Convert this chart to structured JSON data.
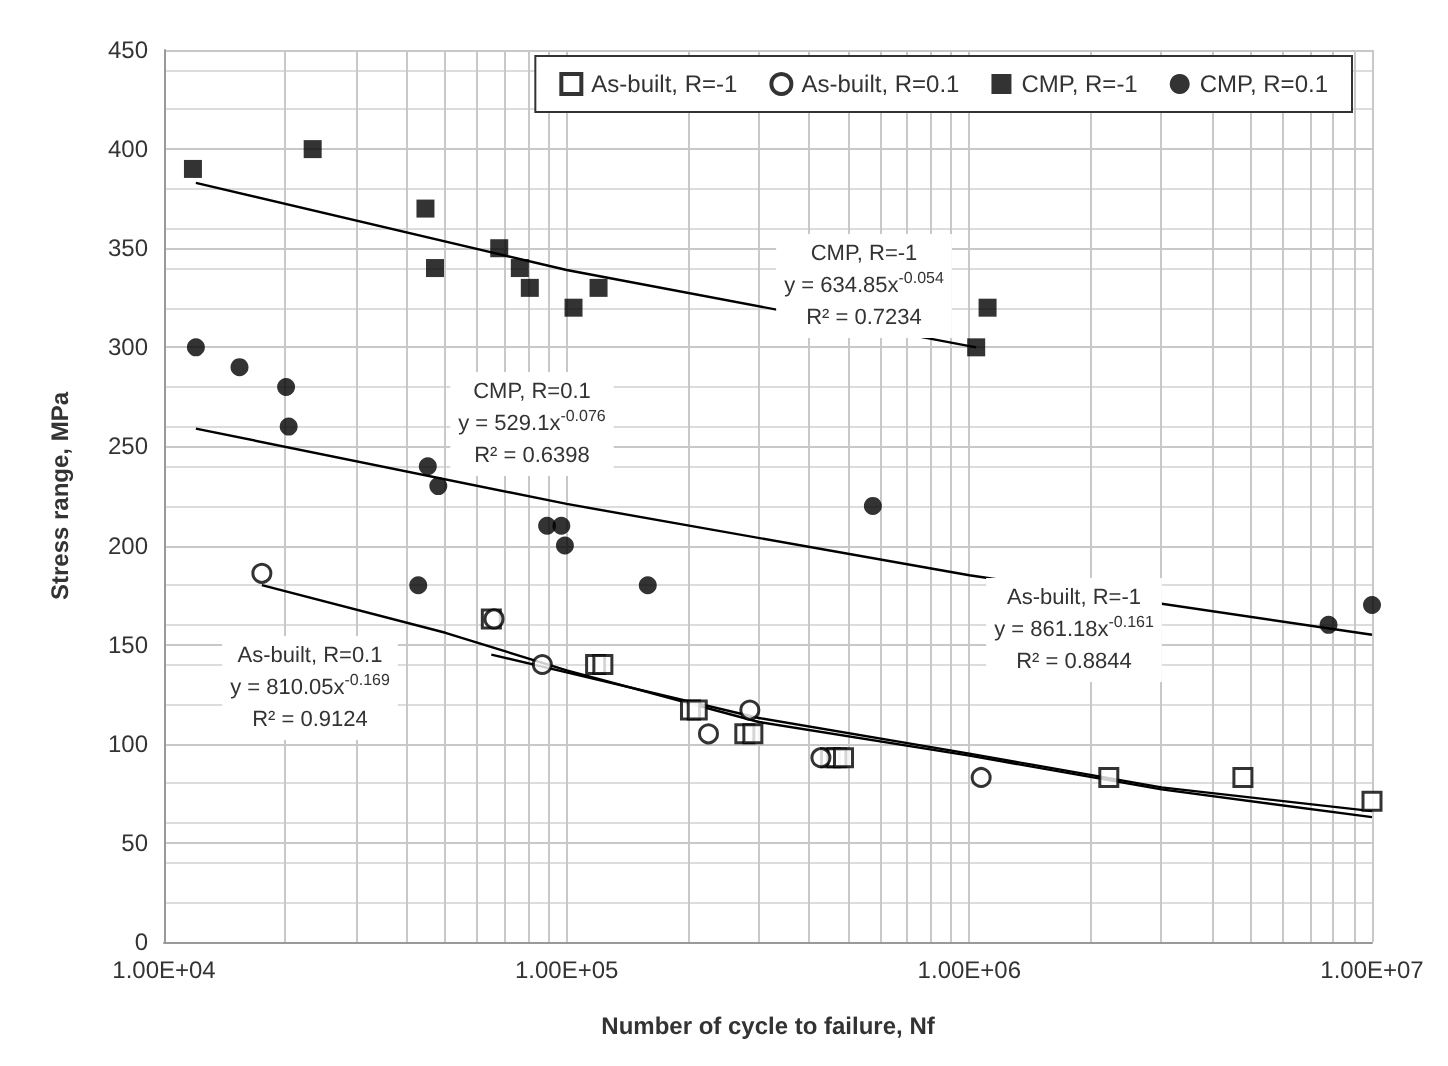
{
  "chart_data": {
    "type": "scatter",
    "xlabel": "Number of cycle to failure, Nf",
    "ylabel": "Stress range, MPa",
    "log": "x",
    "grid": true,
    "legend": "top right",
    "xlim": [
      10000,
      10000000
    ],
    "xticks": [
      {
        "value": 10000,
        "label": "1.00E+04"
      },
      {
        "value": 20000,
        "label": null
      },
      {
        "value": 30000,
        "label": null
      },
      {
        "value": 40000,
        "label": null
      },
      {
        "value": 50000,
        "label": null
      },
      {
        "value": 60000,
        "label": null
      },
      {
        "value": 70000,
        "label": null
      },
      {
        "value": 80000,
        "label": null
      },
      {
        "value": 90000,
        "label": null
      },
      {
        "value": 100000,
        "label": "1.00E+05"
      },
      {
        "value": 200000,
        "label": null
      },
      {
        "value": 300000,
        "label": null
      },
      {
        "value": 400000,
        "label": null
      },
      {
        "value": 500000,
        "label": null
      },
      {
        "value": 600000,
        "label": null
      },
      {
        "value": 700000,
        "label": null
      },
      {
        "value": 800000,
        "label": null
      },
      {
        "value": 900000,
        "label": null
      },
      {
        "value": 1000000,
        "label": "1.00E+06"
      },
      {
        "value": 2000000,
        "label": null
      },
      {
        "value": 3000000,
        "label": null
      },
      {
        "value": 4000000,
        "label": null
      },
      {
        "value": 5000000,
        "label": null
      },
      {
        "value": 6000000,
        "label": null
      },
      {
        "value": 7000000,
        "label": null
      },
      {
        "value": 8000000,
        "label": null
      },
      {
        "value": 9000000,
        "label": null
      },
      {
        "value": 10000000,
        "label": "1.00E+07"
      }
    ],
    "ylim": [
      0,
      450
    ],
    "yticks": [
      0,
      50,
      100,
      150,
      200,
      250,
      300,
      350,
      400,
      450
    ],
    "series": [
      {
        "name": "As-built, R=-1",
        "color": "#ffffff",
        "marker": "square",
        "x": [
          65000,
          118000,
          123000,
          203000,
          211000,
          277000,
          290000,
          452000,
          469000,
          487000,
          2220000,
          4780000,
          10000000
        ],
        "values": [
          163,
          140,
          140,
          117,
          117,
          105,
          105,
          93,
          93,
          93,
          83,
          83,
          71
        ]
      },
      {
        "name": "As-built, R=0.1",
        "color": "#ffffff",
        "marker": "circle",
        "x": [
          17500,
          66000,
          87000,
          225000,
          285000,
          428000,
          1070000
        ],
        "values": [
          186,
          163,
          140,
          105,
          117,
          93,
          83
        ]
      },
      {
        "name": "CMP, R=-1",
        "color": "#000000",
        "marker": "square",
        "x": [
          11800,
          23400,
          44600,
          47100,
          68000,
          76500,
          81000,
          104000,
          120000,
          1040000,
          1110000
        ],
        "values": [
          390,
          400,
          370,
          340,
          350,
          340,
          330,
          320,
          330,
          300,
          320
        ]
      },
      {
        "name": "CMP, R=0.1",
        "color": "#000000",
        "marker": "circle",
        "x": [
          12000,
          15400,
          20100,
          20400,
          42800,
          45200,
          48000,
          89400,
          97000,
          99000,
          159000,
          576000,
          7800000,
          10000000
        ],
        "values": [
          300,
          290,
          280,
          260,
          180,
          240,
          230,
          210,
          210,
          200,
          180,
          220,
          160,
          170
        ]
      },
      {
        "type": "line",
        "color": "#000000",
        "marker": "none",
        "x": [
          12000,
          100000,
          1040000
        ],
        "values": [
          383,
          339,
          300
        ]
      },
      {
        "type": "line",
        "color": "#000000",
        "marker": "none",
        "x": [
          12000,
          100000,
          1000000,
          10000000
        ],
        "values": [
          259,
          221,
          185,
          155
        ]
      },
      {
        "type": "line",
        "color": "#000000",
        "marker": "none",
        "x": [
          65000,
          100000,
          300000,
          1000000,
          3000000,
          10000000
        ],
        "values": [
          145,
          136,
          113,
          95,
          78,
          66
        ]
      },
      {
        "type": "line",
        "color": "#000000",
        "marker": "none",
        "x": [
          17500,
          50000,
          100000,
          300000,
          1000000,
          3000000,
          10000000
        ],
        "values": [
          180,
          156,
          137,
          111,
          94,
          77,
          63
        ]
      }
    ],
    "annotations": [
      "CMP, R=-1\ny = 634.85x$^{-0.054}$\nR² = 0.7234",
      "CMP, R=0.1\ny = 529.1x$^{-0.076}$\nR² = 0.6398",
      "As-built, R=0.1\ny = 810.05x$^{-0.169}$\nR² = 0.9124",
      "As-built, R=-1\ny = 861.18x$^{-0.161}$\nR² = 0.8844"
    ]
  }
}
